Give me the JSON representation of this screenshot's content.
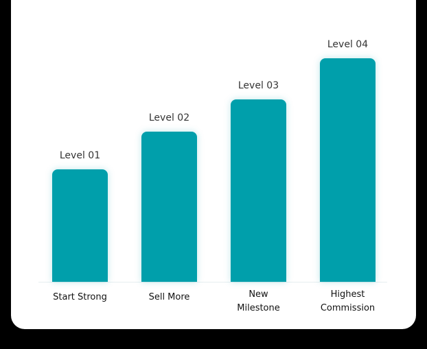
{
  "bars": [
    {
      "level": "Level 01",
      "label_lines": [
        "Start Strong"
      ]
    },
    {
      "level": "Level 02",
      "label_lines": [
        "Sell More"
      ]
    },
    {
      "level": "Level 03",
      "label_lines": [
        "New",
        "Milestone"
      ]
    },
    {
      "level": "Level 04",
      "label_lines": [
        "Highest",
        "Commission"
      ]
    }
  ]
}
